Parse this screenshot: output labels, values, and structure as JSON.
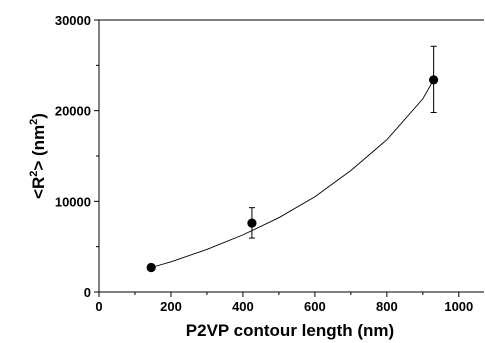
{
  "chart_data": {
    "type": "scatter",
    "title": "",
    "xlabel": "P2VP contour length (nm)",
    "ylabel_parts": [
      "<R",
      "2",
      "> (nm",
      "2",
      ")"
    ],
    "xlim": [
      0,
      1070
    ],
    "ylim": [
      0,
      30000
    ],
    "x_ticks": [
      0,
      200,
      400,
      600,
      800,
      1000
    ],
    "x_tick_labels": [
      "0",
      "200",
      "400",
      "600",
      "800",
      "1000"
    ],
    "y_ticks": [
      0,
      10000,
      20000,
      30000
    ],
    "y_tick_labels": [
      "0",
      "10000",
      "20000",
      "30000"
    ],
    "grid": false,
    "legend": "none",
    "series": [
      {
        "x": [
          145,
          425,
          930
        ],
        "y": [
          2700,
          7600,
          23400
        ],
        "y_err_low": [
          2350,
          5950,
          19800
        ],
        "y_err_high": [
          3050,
          9300,
          27100
        ]
      }
    ],
    "fit_curve": {
      "x": [
        145,
        200,
        300,
        400,
        500,
        600,
        700,
        800,
        900,
        930
      ],
      "y": [
        2700,
        3330,
        4700,
        6300,
        8200,
        10500,
        13400,
        16800,
        21300,
        23400
      ]
    }
  }
}
